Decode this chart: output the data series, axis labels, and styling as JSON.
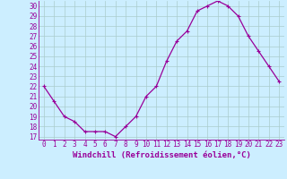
{
  "x": [
    0,
    1,
    2,
    3,
    4,
    5,
    6,
    7,
    8,
    9,
    10,
    11,
    12,
    13,
    14,
    15,
    16,
    17,
    18,
    19,
    20,
    21,
    22,
    23
  ],
  "y": [
    22.0,
    20.5,
    19.0,
    18.5,
    17.5,
    17.5,
    17.5,
    17.0,
    18.0,
    19.0,
    21.0,
    22.0,
    24.5,
    26.5,
    27.5,
    29.5,
    30.0,
    30.5,
    30.0,
    29.0,
    27.0,
    25.5,
    24.0,
    22.5
  ],
  "line_color": "#990099",
  "marker": "+",
  "marker_size": 3,
  "linewidth": 0.9,
  "xlabel": "Windchill (Refroidissement éolien,°C)",
  "xlim_min": -0.5,
  "xlim_max": 23.5,
  "ylim_min": 16.7,
  "ylim_max": 30.5,
  "yticks": [
    17,
    18,
    19,
    20,
    21,
    22,
    23,
    24,
    25,
    26,
    27,
    28,
    29,
    30
  ],
  "xticks": [
    0,
    1,
    2,
    3,
    4,
    5,
    6,
    7,
    8,
    9,
    10,
    11,
    12,
    13,
    14,
    15,
    16,
    17,
    18,
    19,
    20,
    21,
    22,
    23
  ],
  "bg_color": "#cceeff",
  "grid_color": "#aacccc",
  "font_color": "#990099",
  "tick_fontsize": 5.5,
  "xlabel_fontsize": 6.5
}
